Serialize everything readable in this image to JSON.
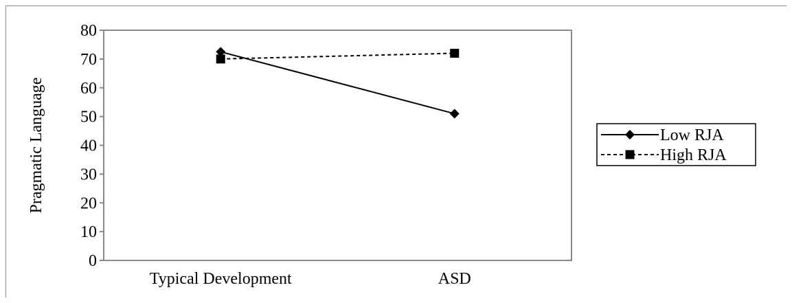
{
  "chart_data": {
    "type": "line",
    "categories": [
      "Typical Development",
      "ASD"
    ],
    "series": [
      {
        "name": "Low RJA",
        "values": [
          72.5,
          51
        ],
        "line_style": "solid",
        "marker": "diamond",
        "color": "#000000"
      },
      {
        "name": "High RJA",
        "values": [
          70,
          72
        ],
        "line_style": "dashed",
        "marker": "square",
        "color": "#000000"
      }
    ],
    "title": "",
    "xlabel": "",
    "ylabel": "Pragmatic Language",
    "ylim": [
      0,
      80
    ],
    "yticks": [
      "0",
      "10",
      "20",
      "30",
      "40",
      "50",
      "60",
      "70",
      "80"
    ],
    "grid": false,
    "legend_position": "right"
  }
}
